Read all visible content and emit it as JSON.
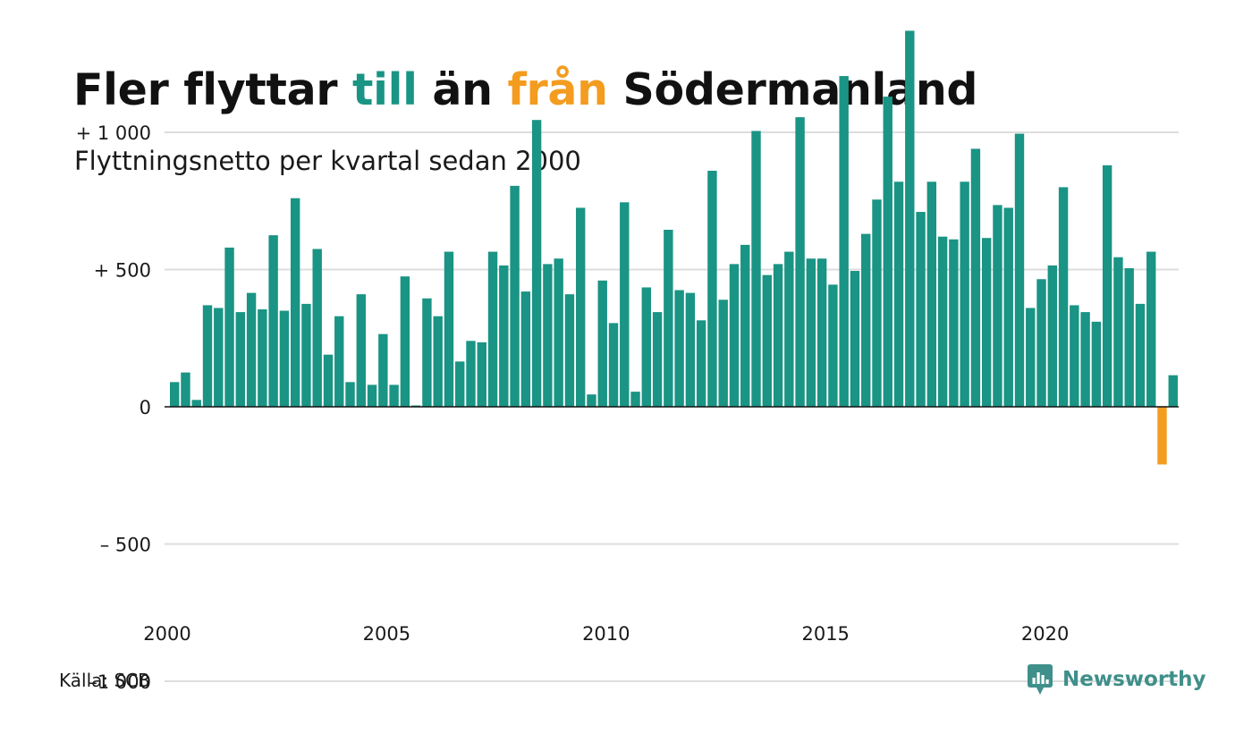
{
  "header": {
    "title_part1": "Fler flyttar ",
    "title_pos": "till",
    "title_part2": " än ",
    "title_neg": "från",
    "title_part3": " Södermanland",
    "subtitle": "Flyttningsnetto per kvartal sedan 2000"
  },
  "footer": {
    "source": "Källa: SCB",
    "brand": "Newsworthy",
    "brand_icon": "newsworthy-logo-icon"
  },
  "colors": {
    "positive": "#1a9484",
    "negative": "#f39c1f",
    "grid": "#dddddd",
    "axis": "#111111",
    "brand": "#3f8f8a"
  },
  "chart_data": {
    "type": "bar",
    "title": "Fler flyttar till än från Södermanland",
    "subtitle": "Flyttningsnetto per kvartal sedan 2000",
    "xlabel": "",
    "ylabel": "",
    "ylim": [
      -1300,
      1400
    ],
    "grid": true,
    "y_ticks": [
      {
        "value": 1000,
        "label": "+ 1 000"
      },
      {
        "value": 500,
        "label": "+   500"
      },
      {
        "value": 0,
        "label": "0"
      },
      {
        "value": -500,
        "label": "–  500"
      },
      {
        "value": -1000,
        "label": "–1 000"
      }
    ],
    "x_ticks": [
      "2000",
      "2005",
      "2010",
      "2015",
      "2020"
    ],
    "start_year": 2000,
    "periods_per_year": 4,
    "values": [
      90,
      125,
      25,
      370,
      360,
      580,
      345,
      415,
      355,
      625,
      350,
      760,
      375,
      575,
      190,
      330,
      90,
      410,
      80,
      265,
      80,
      475,
      5,
      395,
      330,
      565,
      165,
      240,
      235,
      565,
      515,
      805,
      420,
      1045,
      520,
      540,
      410,
      725,
      45,
      460,
      305,
      745,
      55,
      435,
      345,
      645,
      425,
      415,
      315,
      860,
      390,
      520,
      590,
      1005,
      480,
      520,
      565,
      1055,
      540,
      540,
      445,
      1205,
      495,
      630,
      755,
      1130,
      820,
      1370,
      710,
      820,
      620,
      610,
      820,
      940,
      615,
      735,
      725,
      995,
      360,
      465,
      515,
      800,
      370,
      345,
      310,
      880,
      545,
      505,
      375,
      565,
      -210,
      115
    ]
  }
}
